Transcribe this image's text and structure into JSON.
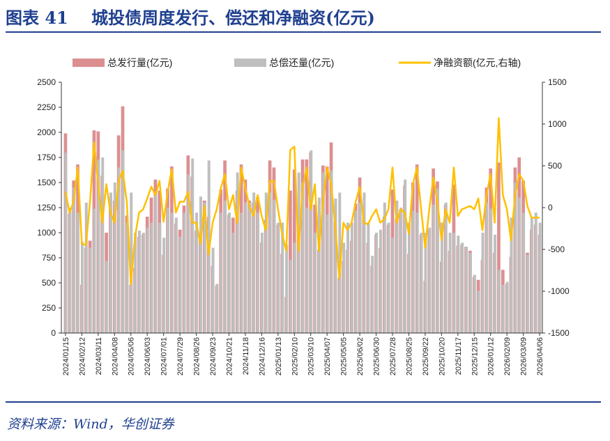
{
  "title": "图表 41    城投债周度发行、偿还和净融资(亿元)",
  "source": "资料来源：Wind，华创证券",
  "chart_data": {
    "type": "bar",
    "colors": {
      "issuance": "#dc8f91",
      "repayment": "#bfbfbf",
      "net": "#ffc000",
      "accent": "#1f3f8f"
    },
    "legend_position": "top",
    "grid": false,
    "x_ticks": [
      "2024/01/15",
      "2024/02/12",
      "2024/03/11",
      "2024/04/08",
      "2024/05/06",
      "2024/06/03",
      "2024/07/01",
      "2024/07/29",
      "2024/08/26",
      "2024/09/23",
      "2024/10/21",
      "2024/11/18",
      "2024/12/16",
      "2025/01/13",
      "2025/02/10",
      "2025/03/10",
      "2025/04/07",
      "2025/05/05",
      "2025/06/02",
      "2025/06/30",
      "2025/07/28",
      "2025/08/25",
      "2025/09/22",
      "2025/10/20",
      "2025/11/17",
      "2025/12/15",
      "2026/01/12",
      "2026/02/09",
      "2026/03/09",
      "2026/04/06"
    ],
    "x_tick_interval_weeks": 4,
    "y_left": {
      "range": [
        0,
        2500
      ],
      "ticks": [
        0,
        250,
        500,
        750,
        1000,
        1250,
        1500,
        1750,
        2000,
        2250,
        2500
      ]
    },
    "y_right": {
      "range": [
        -1500,
        1500
      ],
      "ticks": [
        -1500,
        -1000,
        -500,
        0,
        500,
        1000,
        1500
      ]
    },
    "series": [
      {
        "name": "总发行量(亿元)",
        "type": "bar",
        "axis": "left",
        "values": [
          1990,
          1190,
          1520,
          1680,
          480,
          850,
          920,
          2020,
          2010,
          1570,
          1000,
          1340,
          1320,
          1970,
          2260,
          1170,
          480,
          650,
          960,
          980,
          1160,
          1350,
          1530,
          1420,
          780,
          1440,
          1660,
          1090,
          1030,
          1270,
          1770,
          1560,
          1020,
          930,
          1320,
          1160,
          670,
          470,
          1430,
          1720,
          1180,
          1150,
          1420,
          1680,
          1530,
          1320,
          1300,
          1350,
          900,
          1130,
          1720,
          1650,
          1080,
          790,
          360,
          1420,
          1630,
          1080,
          1730,
          1730,
          1800,
          1280,
          830,
          1670,
          1660,
          1900,
          1120,
          550,
          720,
          830,
          920,
          1290,
          1550,
          1220,
          900,
          670,
          980,
          850,
          1160,
          1080,
          1430,
          1140,
          1230,
          1470,
          790,
          1500,
          1680,
          980,
          520,
          1030,
          1640,
          1510,
          710,
          1280,
          820,
          1480,
          870,
          880,
          860,
          820,
          560,
          530,
          730,
          1450,
          1640,
          800,
          1700,
          630,
          490,
          760,
          1650,
          1750,
          1520,
          800,
          1030,
          1080,
          980
        ]
      },
      {
        "name": "总偿还量(亿元)",
        "type": "bar",
        "axis": "left",
        "values": [
          1800,
          1250,
          1450,
          1200,
          910,
          1300,
          850,
          1240,
          1730,
          1750,
          720,
          1400,
          1500,
          1650,
          1820,
          1100,
          1400,
          1000,
          1020,
          1000,
          1050,
          1100,
          1380,
          1100,
          950,
          1250,
          1200,
          1150,
          960,
          1200,
          1580,
          1740,
          1200,
          1360,
          1300,
          1720,
          850,
          490,
          1200,
          1320,
          1200,
          1000,
          1600,
          1200,
          1300,
          1300,
          1400,
          1200,
          1000,
          1400,
          1400,
          1330,
          1100,
          1100,
          880,
          730,
          900,
          1600,
          1500,
          1250,
          1820,
          1000,
          1350,
          1600,
          1180,
          1620,
          1340,
          1400,
          900,
          1100,
          1100,
          1220,
          1300,
          1400,
          1100,
          770,
          1000,
          1030,
          1300,
          1100,
          950,
          1320,
          1250,
          1530,
          1100,
          1220,
          1200,
          1000,
          1000,
          1050,
          1280,
          1440,
          1100,
          1300,
          1000,
          1000,
          970,
          900,
          860,
          800,
          580,
          420,
          1000,
          1300,
          1240,
          980,
          630,
          480,
          510,
          1150,
          1500,
          1350,
          1200,
          780,
          1150,
          1200,
          1100
        ]
      },
      {
        "name": "净融资额(亿元,右轴)",
        "type": "line",
        "axis": "right",
        "values": [
          190,
          -60,
          70,
          480,
          -430,
          -450,
          70,
          780,
          280,
          -180,
          280,
          -60,
          -180,
          320,
          440,
          70,
          -920,
          -350,
          -60,
          -20,
          110,
          250,
          150,
          320,
          -170,
          190,
          460,
          -60,
          70,
          70,
          190,
          -180,
          -180,
          -430,
          20,
          -560,
          -180,
          -20,
          230,
          400,
          -20,
          150,
          -180,
          480,
          230,
          20,
          -100,
          150,
          -100,
          -270,
          320,
          320,
          -20,
          -310,
          -520,
          690,
          730,
          -520,
          230,
          480,
          -20,
          280,
          -520,
          70,
          480,
          280,
          -220,
          -850,
          -180,
          -270,
          -180,
          70,
          250,
          -180,
          -200,
          -100,
          -20,
          -180,
          -140,
          -20,
          480,
          -180,
          -20,
          -60,
          -310,
          280,
          480,
          -20,
          -480,
          -20,
          360,
          70,
          -390,
          -20,
          -180,
          480,
          -100,
          -20,
          0,
          20,
          -20,
          110,
          -270,
          150,
          400,
          -180,
          1070,
          150,
          -20,
          -390,
          150,
          400,
          320,
          20,
          -120,
          -120,
          -120
        ]
      }
    ]
  }
}
